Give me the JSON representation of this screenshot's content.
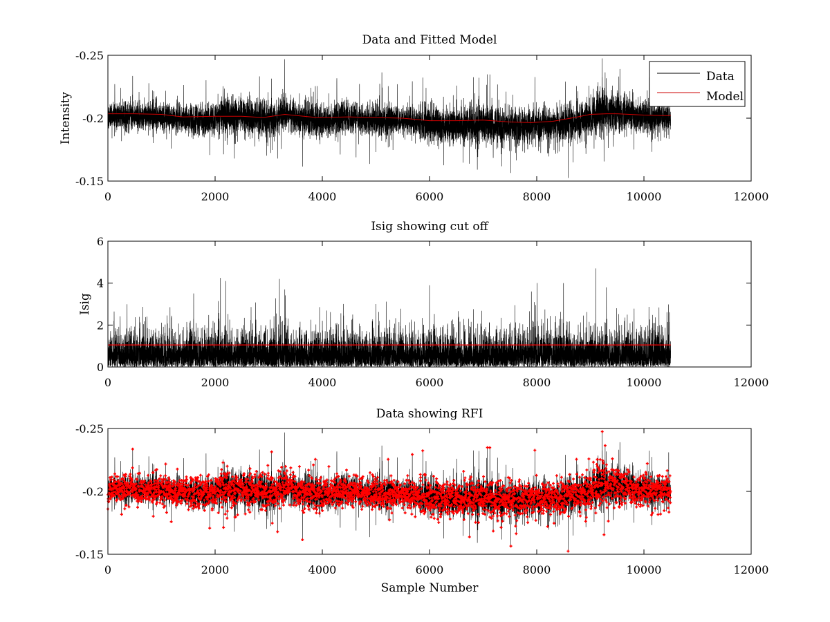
{
  "chart_data": [
    {
      "type": "line",
      "title": "Data and Fitted Model",
      "xlabel": "",
      "ylabel": "Intensity",
      "xlim": [
        0,
        12000
      ],
      "ylim": [
        -0.25,
        -0.15
      ],
      "y_reversed": true,
      "xticks": [
        0,
        2000,
        4000,
        6000,
        8000,
        10000,
        12000
      ],
      "yticks": [
        -0.25,
        -0.2,
        -0.15
      ],
      "xtick_labels": [
        "0",
        "2000",
        "4000",
        "6000",
        "8000",
        "10000",
        "12000"
      ],
      "ytick_labels": [
        "-0.25",
        "-0.2",
        "-0.15"
      ],
      "legend": {
        "placement": "top-right",
        "entries": [
          "Data",
          "Model"
        ]
      },
      "series": [
        {
          "name": "Data",
          "color": "#000000",
          "n": 10500,
          "x": [
            0,
            500,
            1000,
            1500,
            2000,
            2200,
            2500,
            3000,
            3300,
            3500,
            4000,
            4500,
            5000,
            5500,
            6000,
            6500,
            7000,
            7500,
            8000,
            8500,
            9000,
            9200,
            9500,
            10000,
            10500
          ],
          "values": [
            -0.201,
            -0.202,
            -0.201,
            -0.198,
            -0.199,
            -0.203,
            -0.202,
            -0.199,
            -0.204,
            -0.201,
            -0.198,
            -0.2,
            -0.199,
            -0.198,
            -0.195,
            -0.194,
            -0.196,
            -0.193,
            -0.194,
            -0.195,
            -0.2,
            -0.206,
            -0.204,
            -0.201,
            -0.2
          ],
          "spread": [
            0.012,
            0.012,
            0.012,
            0.014,
            0.012,
            0.02,
            0.015,
            0.016,
            0.014,
            0.015,
            0.014,
            0.013,
            0.014,
            0.012,
            0.015,
            0.017,
            0.016,
            0.017,
            0.016,
            0.015,
            0.016,
            0.022,
            0.018,
            0.015,
            0.012
          ]
        },
        {
          "name": "Model",
          "color": "#cc0000",
          "x": [
            0,
            500,
            1000,
            1400,
            2000,
            2500,
            2900,
            3300,
            3900,
            4500,
            5000,
            5500,
            6000,
            6500,
            7000,
            7500,
            7900,
            8300,
            8700,
            9000,
            9300,
            9500,
            10000,
            10500
          ],
          "values": [
            -0.2035,
            -0.2035,
            -0.203,
            -0.201,
            -0.2015,
            -0.2015,
            -0.2005,
            -0.203,
            -0.2005,
            -0.201,
            -0.2005,
            -0.2,
            -0.198,
            -0.198,
            -0.1985,
            -0.197,
            -0.1965,
            -0.1975,
            -0.2005,
            -0.203,
            -0.2035,
            -0.2035,
            -0.2025,
            -0.202
          ]
        }
      ]
    },
    {
      "type": "line",
      "title": "Isig showing cut off",
      "xlabel": "",
      "ylabel": "Isig",
      "xlim": [
        0,
        12000
      ],
      "ylim": [
        0,
        6
      ],
      "xticks": [
        0,
        2000,
        4000,
        6000,
        8000,
        10000,
        12000
      ],
      "yticks": [
        0,
        2,
        4,
        6
      ],
      "xtick_labels": [
        "0",
        "2000",
        "4000",
        "6000",
        "8000",
        "10000",
        "12000"
      ],
      "ytick_labels": [
        "0",
        "2",
        "4",
        "6"
      ],
      "series": [
        {
          "color": "#000000",
          "n": 10500,
          "x_range": [
            0,
            10500
          ],
          "peaks": [
            [
              2100,
              4.25
            ],
            [
              2200,
              4.1
            ],
            [
              3200,
              4.2
            ],
            [
              3300,
              3.7
            ],
            [
              5000,
              3.0
            ],
            [
              6000,
              3.9
            ],
            [
              7900,
              3.6
            ],
            [
              8500,
              4.0
            ],
            [
              9100,
              4.7
            ],
            [
              9300,
              3.8
            ]
          ]
        },
        {
          "color": "#ff0000",
          "x": [
            0,
            10500
          ],
          "values": [
            1.05,
            1.05
          ]
        }
      ]
    },
    {
      "type": "scatter",
      "title": "Data showing RFI",
      "xlabel": "Sample Number",
      "ylabel": "",
      "xlim": [
        0,
        12000
      ],
      "ylim": [
        -0.25,
        -0.15
      ],
      "y_reversed": true,
      "xticks": [
        0,
        2000,
        4000,
        6000,
        8000,
        10000,
        12000
      ],
      "yticks": [
        -0.25,
        -0.2,
        -0.15
      ],
      "xtick_labels": [
        "0",
        "2000",
        "4000",
        "6000",
        "8000",
        "10000",
        "12000"
      ],
      "ytick_labels": [
        "-0.25",
        "-0.2",
        "-0.15"
      ],
      "series": [
        {
          "color": "#000000",
          "style": "line",
          "n": 10500
        },
        {
          "color": "#ff0000",
          "style": "markers",
          "marker": "+",
          "n": 10500
        }
      ]
    }
  ]
}
